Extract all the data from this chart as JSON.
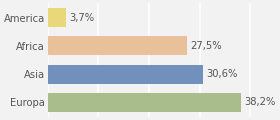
{
  "categories": [
    "America",
    "Africa",
    "Asia",
    "Europa"
  ],
  "values": [
    3.7,
    27.5,
    30.6,
    38.2
  ],
  "labels": [
    "3,7%",
    "27,5%",
    "30,6%",
    "38,2%"
  ],
  "bar_colors": [
    "#e8d87a",
    "#e8c09a",
    "#7191bc",
    "#a8bc8c"
  ],
  "background_color": "#f2f2f2",
  "xlim": [
    0,
    44
  ],
  "bar_height": 0.68,
  "label_fontsize": 7.2,
  "category_fontsize": 7.2,
  "grid_color": "#ffffff",
  "grid_xticks": [
    0,
    10,
    20,
    30,
    40
  ]
}
